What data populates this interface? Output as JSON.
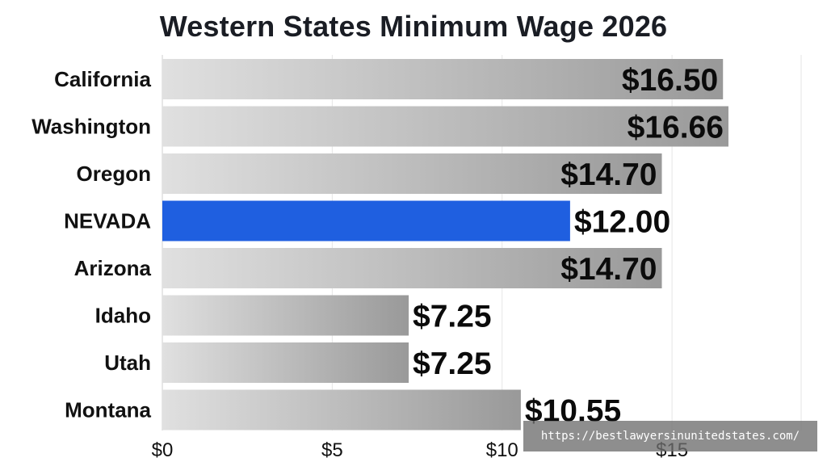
{
  "title": "Western States Minimum Wage 2026",
  "chart_data": {
    "type": "bar",
    "orientation": "horizontal",
    "title": "Western States Minimum Wage 2026",
    "categories": [
      "California",
      "Washington",
      "Oregon",
      "NEVADA",
      "Arizona",
      "Idaho",
      "Utah",
      "Montana"
    ],
    "values": [
      16.5,
      16.66,
      14.7,
      12.0,
      14.7,
      7.25,
      7.25,
      10.55
    ],
    "value_labels": [
      "$16.50",
      "$16.66",
      "$14.70",
      "$12.00",
      "$14.70",
      "$7.25",
      "$7.25",
      "$10.55"
    ],
    "highlight": "NEVADA",
    "colors": {
      "highlight": "#1f5fe0",
      "bar_light": "#dedede",
      "bar_dark": "#9a9a9a"
    },
    "x_ticks": [
      0,
      5,
      10,
      15
    ],
    "x_tick_labels": [
      "$0",
      "$5",
      "$10",
      "$15"
    ],
    "xlim": [
      0,
      18.8
    ],
    "grid": true,
    "xlabel": "",
    "ylabel": ""
  },
  "watermark": "https://bestlawyersinunitedstates.com/"
}
